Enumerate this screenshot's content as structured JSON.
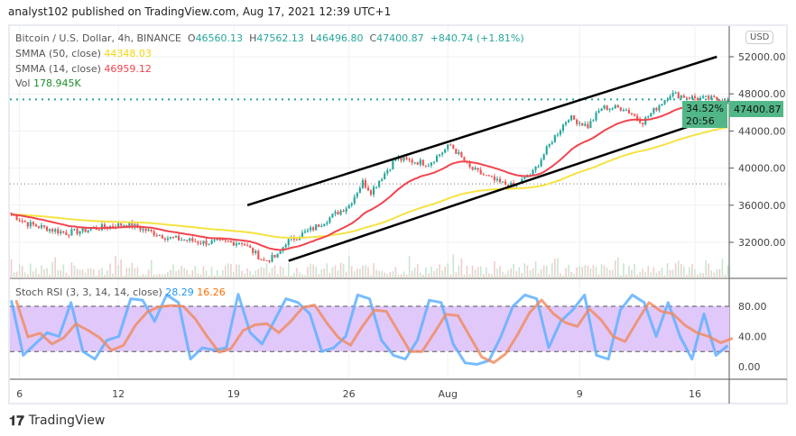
{
  "header": {
    "published": "analyst102 published on TradingView.com, Aug 17, 2021 12:39 UTC+1"
  },
  "legend": {
    "symbol": "Bitcoin / U.S. Dollar, 4h, BINANCE",
    "o_label": "O",
    "o": "46560.13",
    "h_label": "H",
    "h": "47562.13",
    "l_label": "L",
    "l": "46496.80",
    "c_label": "C",
    "c": "47400.87",
    "change": "+840.74 (+1.81%)",
    "smma50_label": "SMMA (50, close)",
    "smma50": "44348.03",
    "smma14_label": "SMMA (14, close)",
    "smma14": "46959.12",
    "vol_label": "Vol",
    "vol": "178.945K",
    "stoch_label": "Stoch RSI (3, 3, 14, 14, close)",
    "stoch_k": "28.29",
    "stoch_d": "16.26"
  },
  "price_axis": {
    "currency": "USD",
    "last_price": "47400.87",
    "last_pct": "34.52%",
    "countdown": "20:56"
  },
  "brand": "TradingView",
  "colors": {
    "up": "#26a69a",
    "down": "#ef5350",
    "smma50": "#f5e342",
    "smma14": "#f2444e",
    "k": "#5fb0ff",
    "d": "#f08a5d",
    "band": "#e1c8fb"
  },
  "chart_data": {
    "type": "candlestick",
    "price_ticks": [
      52000,
      48000,
      44000,
      40000,
      36000,
      32000
    ],
    "price_range": [
      29000,
      54000
    ],
    "stoch_ticks": [
      80,
      40,
      0
    ],
    "x_ticks": [
      {
        "label": "6",
        "t": 3
      },
      {
        "label": "12",
        "t": 39
      },
      {
        "label": "19",
        "t": 81
      },
      {
        "label": "26",
        "t": 123
      },
      {
        "label": "Aug",
        "t": 159
      },
      {
        "label": "9",
        "t": 207
      },
      {
        "label": "16",
        "t": 249
      }
    ],
    "candle_count": 262,
    "close_path": [
      [
        0,
        35000
      ],
      [
        6,
        34000
      ],
      [
        20,
        33000
      ],
      [
        42,
        34000
      ],
      [
        57,
        32500
      ],
      [
        70,
        32000
      ],
      [
        84,
        32000
      ],
      [
        92,
        30000
      ],
      [
        97,
        30500
      ],
      [
        100,
        32000
      ],
      [
        110,
        33500
      ],
      [
        123,
        36000
      ],
      [
        128,
        38500
      ],
      [
        131,
        37500
      ],
      [
        140,
        41000
      ],
      [
        152,
        40500
      ],
      [
        160,
        42500
      ],
      [
        167,
        40000
      ],
      [
        177,
        38500
      ],
      [
        183,
        38000
      ],
      [
        190,
        39500
      ],
      [
        197,
        43000
      ],
      [
        203,
        45500
      ],
      [
        210,
        44500
      ],
      [
        215,
        46500
      ],
      [
        223,
        46500
      ],
      [
        230,
        45000
      ],
      [
        235,
        46500
      ],
      [
        240,
        48000
      ],
      [
        250,
        47500
      ],
      [
        261,
        47400
      ]
    ],
    "stoch_k_path": [
      88,
      15,
      30,
      45,
      40,
      85,
      20,
      10,
      35,
      40,
      90,
      88,
      60,
      95,
      85,
      10,
      25,
      22,
      25,
      96,
      45,
      30,
      60,
      90,
      85,
      70,
      20,
      25,
      40,
      95,
      90,
      35,
      15,
      10,
      35,
      88,
      85,
      30,
      5,
      3,
      8,
      40,
      80,
      95,
      90,
      25,
      60,
      75,
      95,
      15,
      10,
      75,
      95,
      85,
      40,
      85,
      40,
      10,
      70,
      15,
      28
    ]
  },
  "channel": {
    "upper": [
      [
        86,
        36000
      ],
      [
        257,
        52000
      ]
    ],
    "lower": [
      [
        101,
        30000
      ],
      [
        260,
        45800
      ]
    ]
  }
}
